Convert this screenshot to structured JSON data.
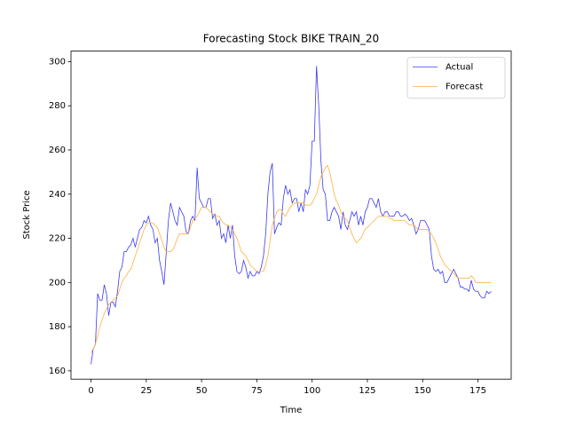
{
  "chart_data": {
    "type": "line",
    "title": "Forecasting Stock BIKE TRAIN_20",
    "x_label": "Time",
    "y_label": "Stock Price",
    "x": [
      0,
      1,
      2,
      3,
      4,
      5,
      6,
      7,
      8,
      9,
      10,
      11,
      12,
      13,
      14,
      15,
      16,
      17,
      18,
      19,
      20,
      21,
      22,
      23,
      24,
      25,
      26,
      27,
      28,
      29,
      30,
      31,
      32,
      33,
      34,
      35,
      36,
      37,
      38,
      39,
      40,
      41,
      42,
      43,
      44,
      45,
      46,
      47,
      48,
      49,
      50,
      51,
      52,
      53,
      54,
      55,
      56,
      57,
      58,
      59,
      60,
      61,
      62,
      63,
      64,
      65,
      66,
      67,
      68,
      69,
      70,
      71,
      72,
      73,
      74,
      75,
      76,
      77,
      78,
      79,
      80,
      81,
      82,
      83,
      84,
      85,
      86,
      87,
      88,
      89,
      90,
      91,
      92,
      93,
      94,
      95,
      96,
      97,
      98,
      99,
      100,
      101,
      102,
      103,
      104,
      105,
      106,
      107,
      108,
      109,
      110,
      111,
      112,
      113,
      114,
      115,
      116,
      117,
      118,
      119,
      120,
      121,
      122,
      123,
      124,
      125,
      126,
      127,
      128,
      129,
      130,
      131,
      132,
      133,
      134,
      135,
      136,
      137,
      138,
      139,
      140,
      141,
      142,
      143,
      144,
      145,
      146,
      147,
      148,
      149,
      150,
      151,
      152,
      153,
      154,
      155,
      156,
      157,
      158,
      159,
      160,
      161,
      162,
      163,
      164,
      165,
      166,
      167,
      168,
      169,
      170,
      171,
      172,
      173,
      174,
      175,
      176,
      177,
      178,
      179,
      180,
      181
    ],
    "series": [
      {
        "name": "Actual",
        "color": "#3b3bf0",
        "values": [
          163,
          170,
          172,
          195,
          192,
          192,
          199,
          195,
          185,
          191,
          191,
          189,
          196,
          205,
          207,
          214,
          214,
          216,
          217,
          220,
          216,
          220,
          224,
          225,
          228,
          227,
          230,
          226,
          224,
          218,
          220,
          210,
          205,
          199,
          213,
          228,
          236,
          232,
          228,
          226,
          234,
          232,
          230,
          223,
          222,
          228,
          230,
          228,
          252,
          238,
          236,
          234,
          234,
          238,
          238,
          229,
          231,
          226,
          228,
          220,
          222,
          218,
          226,
          220,
          226,
          212,
          205,
          204,
          205,
          210,
          207,
          202,
          205,
          203,
          203,
          205,
          204,
          207,
          212,
          222,
          240,
          250,
          254,
          222,
          225,
          227,
          226,
          238,
          244,
          240,
          242,
          236,
          238,
          238,
          232,
          236,
          232,
          242,
          240,
          244,
          264,
          264,
          298,
          280,
          255,
          242,
          240,
          228,
          228,
          232,
          234,
          232,
          230,
          224,
          232,
          226,
          224,
          228,
          232,
          230,
          232,
          226,
          230,
          226,
          232,
          234,
          238,
          238,
          236,
          234,
          238,
          232,
          230,
          232,
          232,
          230,
          230,
          230,
          232,
          232,
          230,
          230,
          231,
          230,
          228,
          229,
          226,
          222,
          224,
          228,
          228,
          228,
          226,
          224,
          212,
          206,
          205,
          206,
          204,
          205,
          200,
          200,
          202,
          204,
          206,
          204,
          202,
          198,
          198,
          197,
          197,
          196,
          201,
          197,
          196,
          196,
          194,
          193,
          193,
          196,
          195,
          196
        ]
      },
      {
        "name": "Forecast",
        "color": "#ffb040",
        "values": [
          168,
          170,
          172,
          176,
          180,
          183,
          186,
          188,
          190,
          191,
          192,
          193,
          194,
          197,
          200,
          202,
          203,
          205,
          206,
          209,
          212,
          215,
          218,
          221,
          224,
          226,
          227,
          227,
          227,
          226,
          225,
          222,
          219,
          216,
          214,
          214,
          214,
          215,
          217,
          220,
          222,
          222,
          222,
          222,
          222,
          225,
          228,
          229,
          230,
          232,
          234,
          234,
          234,
          233,
          232,
          231,
          230,
          230,
          230,
          228,
          227,
          226,
          226,
          225,
          224,
          222,
          220,
          217,
          214,
          213,
          212,
          210,
          208,
          207,
          206,
          205,
          205,
          205,
          205,
          208,
          212,
          219,
          226,
          229,
          232,
          233,
          233,
          231,
          230,
          232,
          234,
          235,
          236,
          236,
          236,
          236,
          236,
          235,
          235,
          235,
          236,
          238,
          240,
          244,
          248,
          250,
          252,
          253,
          250,
          245,
          240,
          237,
          235,
          232,
          230,
          229,
          228,
          225,
          222,
          220,
          218,
          219,
          220,
          222,
          224,
          225,
          226,
          227,
          228,
          229,
          230,
          230,
          230,
          230,
          230,
          229,
          229,
          228,
          228,
          228,
          228,
          228,
          228,
          227,
          226,
          226,
          226,
          225,
          224,
          224,
          224,
          224,
          224,
          223,
          222,
          220,
          218,
          215,
          212,
          210,
          208,
          207,
          206,
          205,
          204,
          203,
          202,
          202,
          202,
          202,
          202,
          202,
          203,
          202,
          200,
          200,
          200,
          200,
          200,
          200,
          200,
          200
        ]
      }
    ],
    "xlim": [
      -9.05,
      190.05
    ],
    "xticks": [
      0,
      25,
      50,
      75,
      100,
      125,
      150,
      175
    ],
    "ylim": [
      156.25,
      304.75
    ],
    "yticks": [
      160,
      180,
      200,
      220,
      240,
      260,
      280,
      300
    ],
    "legend": "upper right"
  }
}
